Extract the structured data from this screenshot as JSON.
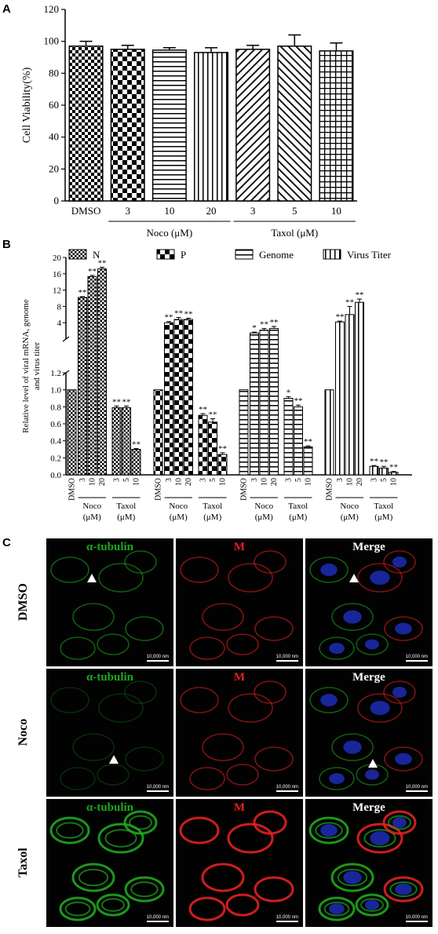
{
  "panels": {
    "a": "A",
    "b": "B",
    "c": "C"
  },
  "colors": {
    "green": "#1ea81e",
    "red": "#e52020",
    "blue": "#2233cc"
  },
  "chart_data": [
    {
      "type": "bar",
      "panel": "A",
      "ylabel": "Cell Viability(%)",
      "ylim": [
        0,
        120
      ],
      "yticks": [
        "0",
        "20",
        "40",
        "60",
        "80",
        "100",
        "120"
      ],
      "categories": [
        "DMSO",
        "3",
        "10",
        "20",
        "3",
        "5",
        "10"
      ],
      "groups": [
        {
          "label": "Noco (μM)",
          "from": 1,
          "to": 3
        },
        {
          "label": "Taxol (μM)",
          "from": 4,
          "to": 6
        }
      ],
      "values": [
        97,
        95,
        94.5,
        93,
        95,
        97,
        94
      ],
      "errors": [
        3,
        2.5,
        1.5,
        3,
        2.5,
        7,
        5
      ],
      "patterns": [
        "check",
        "check-large",
        "hlines",
        "vlines",
        "diag-right",
        "diag-left",
        "grid"
      ]
    },
    {
      "type": "bar",
      "panel": "B",
      "ylabel_lines": [
        "Relative level of viral mRNA, genome",
        "and virus titer"
      ],
      "yticks_lower": [
        "0.0",
        "0.2",
        "0.4",
        "0.6",
        "0.8",
        "1.0",
        "1.2"
      ],
      "yticks_upper": [
        "4",
        "8",
        "12",
        "16",
        "20"
      ],
      "axis_break": true,
      "legend": {
        "position": "top",
        "entries": [
          "N",
          "P",
          "Genome",
          "Virus Titer"
        ]
      },
      "categories": [
        "DMSO",
        "3",
        "10",
        "20",
        "3",
        "5",
        "10"
      ],
      "groups": [
        {
          "label_lines": [
            "Noco",
            "(μM)"
          ],
          "from": 1,
          "to": 3
        },
        {
          "label_lines": [
            "Taxol",
            "(μM)"
          ],
          "from": 4,
          "to": 6
        }
      ],
      "series": [
        {
          "name": "N",
          "pattern": "check-small",
          "values": [
            1.0,
            10.2,
            15.3,
            17.2,
            0.79,
            0.79,
            0.3
          ],
          "errors": [
            0,
            0.2,
            0.3,
            0.4,
            0.02,
            0.02,
            0.01
          ],
          "stars": [
            "",
            "**",
            "**",
            "**",
            "**",
            "**",
            "**"
          ]
        },
        {
          "name": "P",
          "pattern": "check-large",
          "values": [
            1.0,
            4.0,
            4.8,
            4.8,
            0.7,
            0.62,
            0.24
          ],
          "errors": [
            0,
            0.3,
            0.5,
            0.3,
            0.02,
            0.04,
            0.02
          ],
          "stars": [
            "",
            "**",
            "**",
            "**",
            "**",
            "**",
            "**"
          ]
        },
        {
          "name": "Genome",
          "pattern": "hlines",
          "values": [
            1.0,
            1.5,
            2.2,
            2.6,
            0.9,
            0.8,
            0.33
          ],
          "errors": [
            0,
            0.2,
            0.4,
            0.5,
            0.02,
            0.02,
            0.01
          ],
          "stars": [
            "",
            "*",
            "**",
            "**",
            "*",
            "**",
            "**"
          ]
        },
        {
          "name": "Virus Titer",
          "pattern": "vlines",
          "values": [
            1.0,
            4.2,
            6.0,
            9.0,
            0.1,
            0.08,
            0.03
          ],
          "errors": [
            0,
            0.2,
            2.0,
            0.8,
            0.01,
            0.02,
            0.01
          ],
          "stars": [
            "",
            "**",
            "**",
            "**",
            "**",
            "**",
            "**"
          ]
        }
      ]
    }
  ],
  "panel_c": {
    "columns": [
      "α-tubulin",
      "M",
      "Merge"
    ],
    "rows": [
      "DMSO",
      "Noco",
      "Taxol"
    ],
    "scale_bar": "10,000 nm"
  }
}
